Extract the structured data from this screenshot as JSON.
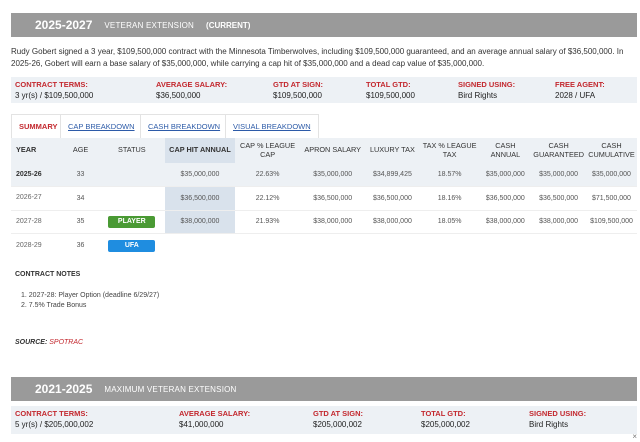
{
  "section1": {
    "years": "2025-2027",
    "type": "VETERAN EXTENSION",
    "status": "(CURRENT)",
    "description": "Rudy Gobert signed a 3 year, $109,500,000 contract with the Minnesota Timberwolves, including $109,500,000 guaranteed, and an average annual salary of $36,500,000. In 2025-26, Gobert will earn a base salary of $35,000,000, while carrying a cap hit of $35,000,000 and a dead cap value of $35,000,000.",
    "terms": [
      {
        "label": "CONTRACT TERMS:",
        "value": "3 yr(s) / $109,500,000"
      },
      {
        "label": "AVERAGE SALARY:",
        "value": "$36,500,000"
      },
      {
        "label": "GTD AT SIGN:",
        "value": "$109,500,000"
      },
      {
        "label": "TOTAL GTD:",
        "value": "$109,500,000"
      },
      {
        "label": "SIGNED USING:",
        "value": "Bird Rights"
      },
      {
        "label": "FREE AGENT:",
        "value": "2028 / UFA"
      }
    ],
    "tabs": [
      "SUMMARY",
      "CAP BREAKDOWN",
      "CASH BREAKDOWN",
      "VISUAL BREAKDOWN"
    ],
    "table": {
      "headers": [
        "YEAR",
        "AGE",
        "STATUS",
        "CAP HIT ANNUAL",
        "CAP % LEAGUE CAP",
        "APRON SALARY",
        "LUXURY TAX",
        "TAX % LEAGUE TAX",
        "CASH ANNUAL",
        "CASH GUARANTEED",
        "CASH CUMULATIVE"
      ],
      "rows": [
        {
          "year": "2025-26",
          "age": "33",
          "status": "",
          "cap_hit": "$35,000,000",
          "cap_pct": "22.63%",
          "apron": "$35,000,000",
          "lux_tax": "$34,899,425",
          "tax_pct": "18.57%",
          "cash_annual": "$35,000,000",
          "cash_gtd": "$35,000,000",
          "cash_cum": "$35,000,000"
        },
        {
          "year": "2026-27",
          "age": "34",
          "status": "",
          "cap_hit": "$36,500,000",
          "cap_pct": "22.12%",
          "apron": "$36,500,000",
          "lux_tax": "$36,500,000",
          "tax_pct": "18.16%",
          "cash_annual": "$36,500,000",
          "cash_gtd": "$36,500,000",
          "cash_cum": "$71,500,000"
        },
        {
          "year": "2027-28",
          "age": "35",
          "status": "PLAYER",
          "cap_hit": "$38,000,000",
          "cap_pct": "21.93%",
          "apron": "$38,000,000",
          "lux_tax": "$38,000,000",
          "tax_pct": "18.05%",
          "cash_annual": "$38,000,000",
          "cash_gtd": "$38,000,000",
          "cash_cum": "$109,500,000"
        },
        {
          "year": "2028-29",
          "age": "36",
          "status": "UFA"
        }
      ]
    },
    "notes_title": "CONTRACT NOTES",
    "notes": [
      "1. 2027-28: Player Option (deadline 6/29/27)",
      "2. 7.5% Trade Bonus"
    ],
    "source_label": "SOURCE:",
    "source_link": "SPOTRAC"
  },
  "section2": {
    "years": "2021-2025",
    "type": "MAXIMUM VETERAN EXTENSION",
    "terms": [
      {
        "label": "CONTRACT TERMS:",
        "value": "5 yr(s) / $205,000,002"
      },
      {
        "label": "AVERAGE SALARY:",
        "value": "$41,000,000"
      },
      {
        "label": "GTD AT SIGN:",
        "value": "$205,000,002"
      },
      {
        "label": "TOTAL GTD:",
        "value": "$205,000,002"
      },
      {
        "label": "SIGNED USING:",
        "value": "Bird Rights"
      }
    ]
  },
  "colors": {
    "header_bg": "#9a9a9a",
    "accent_red": "#c3282e",
    "player_badge": "#4a9a34",
    "ufa_badge": "#1f8de0",
    "terms_bg": "#edf1f5"
  },
  "corner_icon": "close-icon",
  "corner_glyph": "×"
}
